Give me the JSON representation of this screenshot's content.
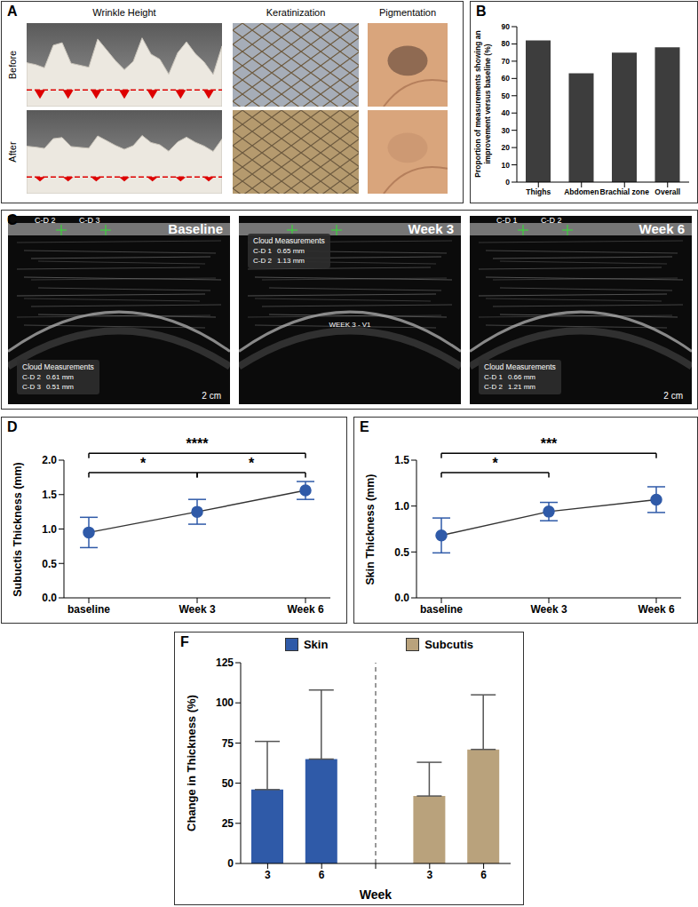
{
  "chart_data": [
    {
      "type": "image",
      "panel_label": "A",
      "columns": [
        "Wrinkle Height",
        "Keratinization",
        "Pigmentation"
      ],
      "rows": [
        "Before",
        "After"
      ]
    },
    {
      "type": "bar",
      "panel_label": "B",
      "categories": [
        "Thighs",
        "Abdomen",
        "Brachial zone",
        "Overall"
      ],
      "values": [
        82,
        63,
        75,
        78
      ],
      "color": "#3d3d3d",
      "y_label": "Proportion of measurements showing an improvement versus baseline (%)",
      "ylim": [
        0,
        90
      ],
      "yticks": [
        0,
        10,
        20,
        30,
        40,
        50,
        60,
        70,
        80,
        90
      ]
    },
    {
      "type": "image",
      "panel_label": "C",
      "images": [
        {
          "title": "Baseline",
          "markers": [
            "C-D 2",
            "C-D 3"
          ],
          "box_title": "Cloud Measurements",
          "measurements": [
            [
              "C-D 2",
              "0.61 mm"
            ],
            [
              "C-D 3",
              "0.51 mm"
            ]
          ],
          "scale": "2 cm"
        },
        {
          "title": "Week 3",
          "markers": [],
          "box_title": "Cloud Measurements",
          "measurements": [
            [
              "C-D 1",
              "0.65 mm"
            ],
            [
              "C-D 2",
              "1.13 mm"
            ]
          ],
          "center_label": "WEEK 3 - V1"
        },
        {
          "title": "Week 6",
          "markers": [
            "C-D 1",
            "C-D 2"
          ],
          "box_title": "Cloud Measurements",
          "measurements": [
            [
              "C-D 1",
              "0.66 mm"
            ],
            [
              "C-D 2",
              "1.21 mm"
            ]
          ],
          "scale": "2 cm"
        }
      ]
    },
    {
      "type": "line",
      "panel_label": "D",
      "categories": [
        "baseline",
        "Week 3",
        "Week 6"
      ],
      "values": [
        0.95,
        1.25,
        1.56
      ],
      "errors": [
        0.22,
        0.18,
        0.13
      ],
      "color": "#2f5aa8",
      "marker": "circle",
      "y_label": "Subuctis Thickness (mm)",
      "ylim": [
        0,
        2
      ],
      "yticks": [
        {
          "value": 0,
          "label": "0.0"
        },
        0.5,
        {
          "value": 1,
          "label": "1.0"
        },
        1.5,
        {
          "value": 2,
          "label": "2.0"
        }
      ],
      "significance": [
        {
          "from": "baseline",
          "to": "Week 3",
          "label": "*"
        },
        {
          "from": "Week 3",
          "to": "Week 6",
          "label": "*"
        },
        {
          "from": "baseline",
          "to": "Week 6",
          "label": "****"
        }
      ]
    },
    {
      "type": "line",
      "panel_label": "E",
      "categories": [
        "baseline",
        "Week 3",
        "Week 6"
      ],
      "values": [
        0.68,
        0.94,
        1.07
      ],
      "errors": [
        0.19,
        0.1,
        0.14
      ],
      "color": "#2f5aa8",
      "marker": "circle",
      "y_label": "Skin Thickness (mm)",
      "ylim": [
        0,
        1.5
      ],
      "yticks": [
        {
          "value": 0,
          "label": "0.0"
        },
        0.5,
        {
          "value": 1,
          "label": "1.0"
        },
        1.5
      ],
      "significance": [
        {
          "from": "baseline",
          "to": "Week 3",
          "label": "*"
        },
        {
          "from": "baseline",
          "to": "Week 6",
          "label": "***"
        }
      ]
    },
    {
      "type": "bar",
      "panel_label": "F",
      "categories": [
        "3",
        "6"
      ],
      "series": [
        {
          "name": "Skin",
          "color": "#2f5aa8",
          "values": [
            46,
            65
          ],
          "errors": [
            30,
            43
          ]
        },
        {
          "name": "Subcutis",
          "color": "#b9a27c",
          "values": [
            42,
            71
          ],
          "errors": [
            21,
            34
          ]
        }
      ],
      "x_label": "Week",
      "y_label": "Change in Thickness (%)",
      "ylim": [
        0,
        125
      ],
      "yticks": [
        0,
        25,
        50,
        75,
        100,
        125
      ],
      "legend": "top"
    }
  ]
}
